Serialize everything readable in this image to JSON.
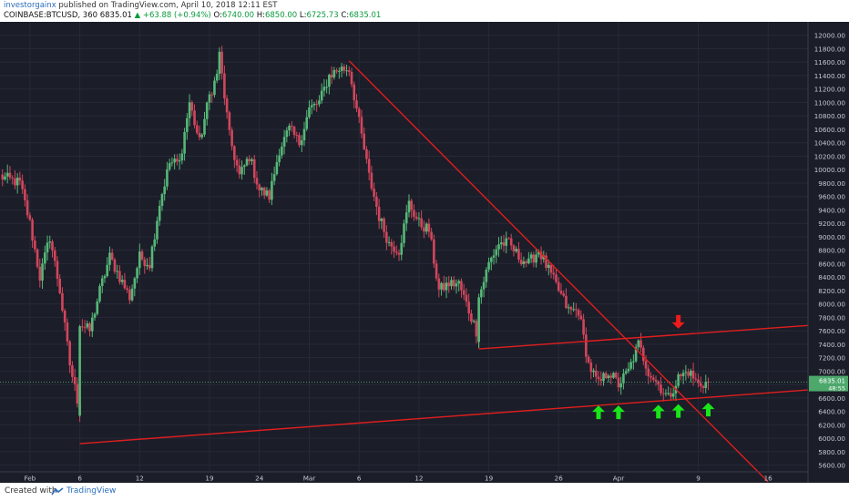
{
  "header": {
    "author": "investorgainx",
    "published": "published on TradingView.com, April 10, 2018 12:11 EST",
    "symbol": "COINBASE:BTCUSD, 360",
    "last": "6835.01",
    "change": "▲ +63.88 (+0.94%)",
    "o_label": "O:",
    "o_value": "6740.00",
    "h_label": "H:",
    "h_value": "6850.00",
    "l_label": "L:",
    "l_value": "6725.73",
    "c_label": "C:",
    "c_value": "6835.01"
  },
  "footer": {
    "created": "Created with",
    "brand": "TradingView"
  },
  "colors": {
    "background": "#1b1d28",
    "up": "#56b878",
    "down": "#d1465c",
    "trendline": "#e01e1e",
    "arrow_up": "#19e619",
    "arrow_down": "#ee1b1b",
    "axis_text": "#c6cad6",
    "badge": "#4da86c"
  },
  "chart_data": {
    "type": "candlestick",
    "symbol": "COINBASE:BTCUSD",
    "ylim": [
      5500,
      12200
    ],
    "y_ticks": [
      5600,
      5800,
      6000,
      6200,
      6400,
      6600,
      6800,
      7000,
      7200,
      7400,
      7600,
      7800,
      8000,
      8200,
      8400,
      8600,
      8800,
      9000,
      9200,
      9400,
      9600,
      9800,
      10000,
      10200,
      10400,
      10600,
      10800,
      11000,
      11200,
      11400,
      11600,
      11800,
      12000
    ],
    "x_range": [
      "2018-01-29",
      "2018-04-20"
    ],
    "x_ticks": [
      {
        "date": "2018-02-01",
        "label": "Feb"
      },
      {
        "date": "2018-02-06",
        "label": "6"
      },
      {
        "date": "2018-02-12",
        "label": "12"
      },
      {
        "date": "2018-02-19",
        "label": "19"
      },
      {
        "date": "2018-02-24",
        "label": "24"
      },
      {
        "date": "2018-03-01",
        "label": "Mar"
      },
      {
        "date": "2018-03-06",
        "label": "6"
      },
      {
        "date": "2018-03-12",
        "label": "12"
      },
      {
        "date": "2018-03-19",
        "label": "19"
      },
      {
        "date": "2018-03-26",
        "label": "26"
      },
      {
        "date": "2018-04-01",
        "label": "Apr"
      },
      {
        "date": "2018-04-09",
        "label": "9"
      },
      {
        "date": "2018-04-16",
        "label": "16"
      }
    ],
    "interval_hours": 6,
    "close_path": [
      [
        "2018-01-29",
        9900
      ],
      [
        "2018-01-31",
        9800
      ],
      [
        "2018-02-01",
        9200
      ],
      [
        "2018-02-02",
        8400
      ],
      [
        "2018-02-03",
        9000
      ],
      [
        "2018-02-04",
        8200
      ],
      [
        "2018-02-05",
        7100
      ],
      [
        "2018-02-06",
        6400
      ],
      [
        "2018-02-06",
        7700
      ],
      [
        "2018-02-07",
        7600
      ],
      [
        "2018-02-08",
        8200
      ],
      [
        "2018-02-09",
        8700
      ],
      [
        "2018-02-10",
        8400
      ],
      [
        "2018-02-11",
        8100
      ],
      [
        "2018-02-12",
        8700
      ],
      [
        "2018-02-13",
        8600
      ],
      [
        "2018-02-14",
        9500
      ],
      [
        "2018-02-15",
        10100
      ],
      [
        "2018-02-16",
        10100
      ],
      [
        "2018-02-17",
        11000
      ],
      [
        "2018-02-18",
        10400
      ],
      [
        "2018-02-19",
        11100
      ],
      [
        "2018-02-20",
        11500
      ],
      [
        "2018-02-20",
        11700
      ],
      [
        "2018-02-21",
        10500
      ],
      [
        "2018-02-22",
        9900
      ],
      [
        "2018-02-23",
        10200
      ],
      [
        "2018-02-24",
        9700
      ],
      [
        "2018-02-25",
        9600
      ],
      [
        "2018-02-26",
        10300
      ],
      [
        "2018-02-27",
        10600
      ],
      [
        "2018-02-28",
        10400
      ],
      [
        "2018-03-01",
        10900
      ],
      [
        "2018-03-02",
        11000
      ],
      [
        "2018-03-03",
        11400
      ],
      [
        "2018-03-04",
        11500
      ],
      [
        "2018-03-05",
        11500
      ],
      [
        "2018-03-06",
        10700
      ],
      [
        "2018-03-07",
        9900
      ],
      [
        "2018-03-08",
        9300
      ],
      [
        "2018-03-09",
        8900
      ],
      [
        "2018-03-10",
        8800
      ],
      [
        "2018-03-11",
        9500
      ],
      [
        "2018-03-12",
        9200
      ],
      [
        "2018-03-13",
        9100
      ],
      [
        "2018-03-14",
        8200
      ],
      [
        "2018-03-15",
        8300
      ],
      [
        "2018-03-16",
        8300
      ],
      [
        "2018-03-17",
        7900
      ],
      [
        "2018-03-18",
        7500
      ],
      [
        "2018-03-18",
        8100
      ],
      [
        "2018-03-19",
        8600
      ],
      [
        "2018-03-20",
        8900
      ],
      [
        "2018-03-21",
        8900
      ],
      [
        "2018-03-22",
        8700
      ],
      [
        "2018-03-23",
        8600
      ],
      [
        "2018-03-24",
        8800
      ],
      [
        "2018-03-25",
        8500
      ],
      [
        "2018-03-26",
        8200
      ],
      [
        "2018-03-27",
        7900
      ],
      [
        "2018-03-28",
        7900
      ],
      [
        "2018-03-29",
        7100
      ],
      [
        "2018-03-30",
        6800
      ],
      [
        "2018-03-31",
        7000
      ],
      [
        "2018-04-01",
        6800
      ],
      [
        "2018-04-02",
        7000
      ],
      [
        "2018-04-03",
        7400
      ],
      [
        "2018-04-04",
        7000
      ],
      [
        "2018-04-05",
        6800
      ],
      [
        "2018-04-06",
        6600
      ],
      [
        "2018-04-07",
        6900
      ],
      [
        "2018-04-08",
        7000
      ],
      [
        "2018-04-09",
        6800
      ],
      [
        "2018-04-10",
        6835
      ]
    ],
    "trendlines": [
      {
        "name": "falling-resistance",
        "from": [
          "2018-03-05",
          11620
        ],
        "to": [
          "2018-04-16",
          5350
        ]
      },
      {
        "name": "support",
        "from": [
          "2018-02-06",
          5920
        ],
        "to": [
          "2018-04-20",
          6720
        ]
      },
      {
        "name": "upper-channel",
        "from": [
          "2018-03-18",
          7330
        ],
        "to": [
          "2018-04-20",
          7680
        ]
      }
    ],
    "annotations": [
      {
        "type": "arrow-down",
        "date": "2018-04-07",
        "price": 7740
      },
      {
        "type": "arrow-up",
        "date": "2018-03-30",
        "price": 6380
      },
      {
        "type": "arrow-up",
        "date": "2018-04-01",
        "price": 6380
      },
      {
        "type": "arrow-up",
        "date": "2018-04-05",
        "price": 6390
      },
      {
        "type": "arrow-up",
        "date": "2018-04-07",
        "price": 6400
      },
      {
        "type": "arrow-up",
        "date": "2018-04-10",
        "price": 6420
      }
    ],
    "price_badge": {
      "value": "6835.01",
      "countdown": "48:55"
    }
  }
}
